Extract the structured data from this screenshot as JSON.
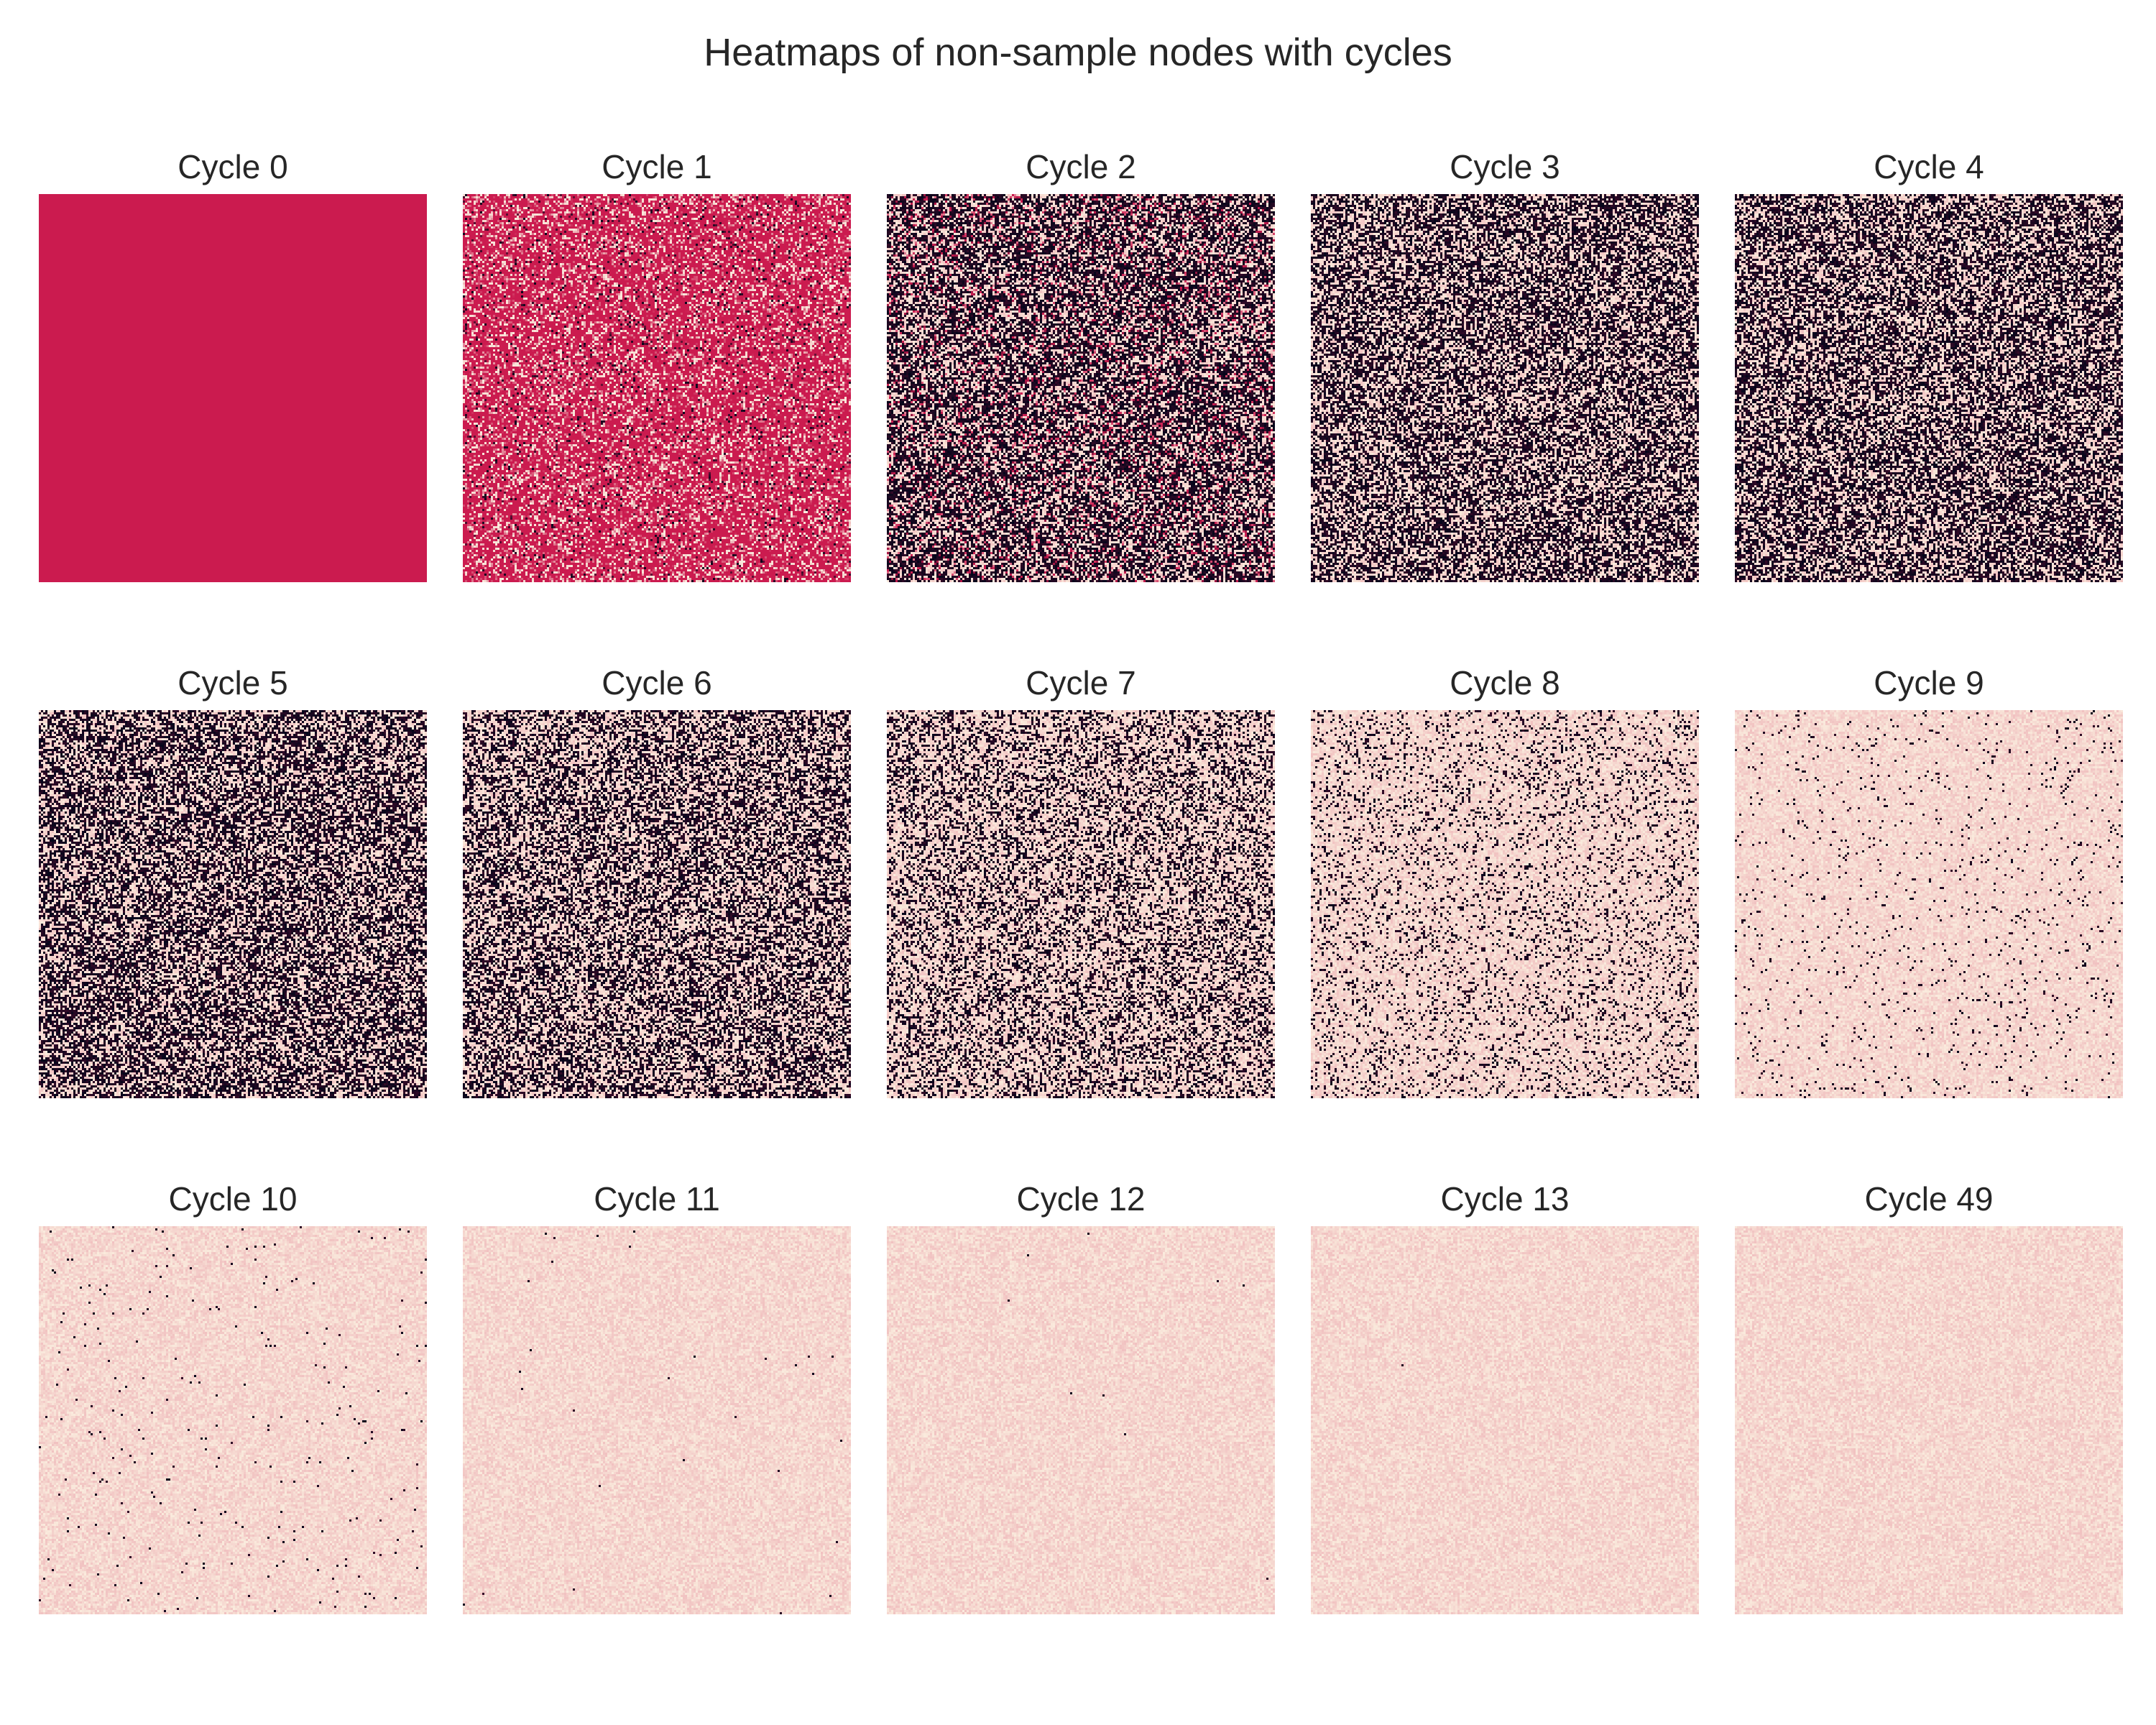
{
  "title": "Heatmaps of non-sample nodes with cycles",
  "colors": {
    "colormap": "rocket",
    "low": "#03051a",
    "mid": "#cb1b4f",
    "high": "#faebdd",
    "background": "#ffffff"
  },
  "chart_data": {
    "type": "heatmap",
    "title": "Heatmaps of non-sample nodes with cycles",
    "grid": false,
    "axes_visible": false,
    "grid_size": [
      180,
      180
    ],
    "value_range": [
      0,
      1
    ],
    "panels": [
      {
        "label": "Cycle 0",
        "cycle": 0,
        "mean_value": 0.5,
        "distribution": "constant"
      },
      {
        "label": "Cycle 1",
        "cycle": 1,
        "mean_value": 0.52,
        "distribution": "centered_noise"
      },
      {
        "label": "Cycle 2",
        "cycle": 2,
        "low_fraction": 0.55,
        "high_fraction": 0.35,
        "mid_fraction": 0.1
      },
      {
        "label": "Cycle 3",
        "cycle": 3,
        "low_fraction": 0.55,
        "high_fraction": 0.45,
        "mid_fraction": 0.0
      },
      {
        "label": "Cycle 4",
        "cycle": 4,
        "low_fraction": 0.55,
        "high_fraction": 0.45,
        "mid_fraction": 0.0
      },
      {
        "label": "Cycle 5",
        "cycle": 5,
        "low_fraction": 0.55,
        "high_fraction": 0.45,
        "mid_fraction": 0.0
      },
      {
        "label": "Cycle 6",
        "cycle": 6,
        "low_fraction": 0.48,
        "high_fraction": 0.52,
        "mid_fraction": 0.0
      },
      {
        "label": "Cycle 7",
        "cycle": 7,
        "low_fraction": 0.35,
        "high_fraction": 0.65,
        "mid_fraction": 0.0
      },
      {
        "label": "Cycle 8",
        "cycle": 8,
        "low_fraction": 0.15,
        "high_fraction": 0.85,
        "mid_fraction": 0.0
      },
      {
        "label": "Cycle 9",
        "cycle": 9,
        "low_fraction": 0.03,
        "high_fraction": 0.97,
        "mid_fraction": 0.0
      },
      {
        "label": "Cycle 10",
        "cycle": 10,
        "low_fraction": 0.008,
        "high_fraction": 0.992,
        "mid_fraction": 0.0
      },
      {
        "label": "Cycle 11",
        "cycle": 11,
        "low_fraction": 0.0012,
        "high_fraction": 0.9988,
        "mid_fraction": 0.0
      },
      {
        "label": "Cycle 12",
        "cycle": 12,
        "low_fraction": 0.0002,
        "high_fraction": 0.9998,
        "mid_fraction": 0.0
      },
      {
        "label": "Cycle 13",
        "cycle": 13,
        "low_fraction": 5e-05,
        "high_fraction": 0.99995,
        "mid_fraction": 0.0
      },
      {
        "label": "Cycle 49",
        "cycle": 49,
        "low_fraction": 0.0,
        "high_fraction": 1.0,
        "mid_fraction": 0.0
      }
    ]
  }
}
